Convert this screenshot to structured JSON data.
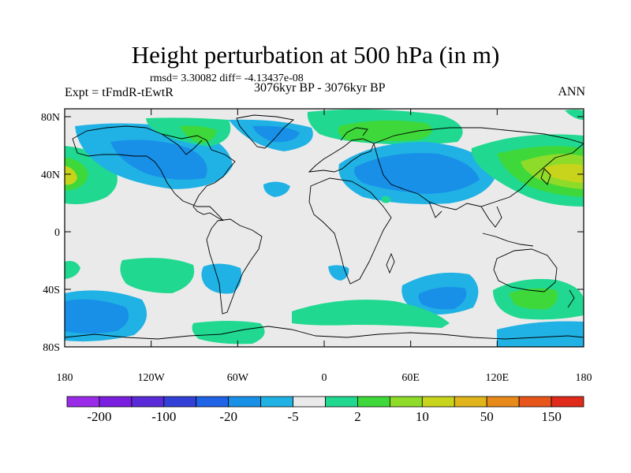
{
  "title": "Height perturbation at 500 hPa (in m)",
  "stats_line": "rmsd= 3.30082 diff= -4.13437e-08",
  "experiment": "Expt = tFmdR-tEwtR",
  "period": "3076kyr BP - 3076kyr BP",
  "season": "ANN",
  "axes": {
    "lat_ticks": [
      "80N",
      "40N",
      "0",
      "40S",
      "80S"
    ],
    "lon_ticks": [
      "180",
      "120W",
      "60W",
      "0",
      "60E",
      "120E",
      "180"
    ]
  },
  "colorbar": {
    "colors": [
      "#9a2be8",
      "#7a1ee0",
      "#5a2ad8",
      "#3340d8",
      "#1f63e6",
      "#1890e8",
      "#20b2e4",
      "#eaeaea",
      "#20d890",
      "#3ed83a",
      "#8edb2a",
      "#c8d31c",
      "#e0b41a",
      "#e88a1a",
      "#e8551a",
      "#e02a1a"
    ],
    "labels": [
      "-200",
      "-100",
      "-20",
      "-5",
      "2",
      "10",
      "50",
      "150"
    ]
  },
  "field_colors": {
    "background": "#eaeaea",
    "neg_light": "#20b2e4",
    "neg_mid": "#1890e8",
    "pos_light": "#20d890",
    "pos_mid": "#3ed83a",
    "pos_strong": "#8edb2a",
    "pos_yellow": "#c8d31c"
  }
}
